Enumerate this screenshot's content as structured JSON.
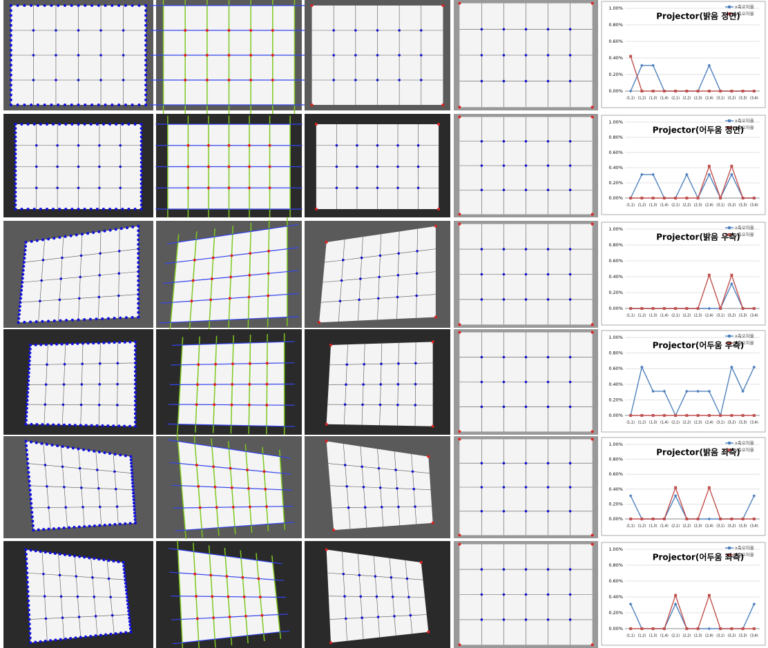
{
  "chart_data": [
    {
      "type": "line",
      "title": "Projector(밝음 정면)",
      "categories": [
        "(1,1)",
        "(1,2)",
        "(1,3)",
        "(1,4)",
        "(2,1)",
        "(2,2)",
        "(2,3)",
        "(2,4)",
        "(3,1)",
        "(3,2)",
        "(3,3)",
        "(3,4)"
      ],
      "series": [
        {
          "name": "x축오차율",
          "color": "#4f81bd",
          "values": [
            0,
            0.31,
            0.31,
            0,
            0,
            0,
            0,
            0.31,
            0,
            0,
            0,
            0
          ]
        },
        {
          "name": "y축오차율",
          "color": "#c0504d",
          "values": [
            0.42,
            0,
            0,
            0,
            0,
            0,
            0,
            0,
            0,
            0,
            0,
            0
          ]
        }
      ],
      "ylim": [
        0,
        1
      ],
      "yticks": [
        {
          "value": 0,
          "label": "0.00%"
        },
        {
          "value": 0.2,
          "label": "0.20%"
        },
        {
          "value": 0.4,
          "label": "0.40%"
        },
        {
          "value": 0.6,
          "label": "0.60%"
        },
        {
          "value": 0.8,
          "label": "0.80%"
        },
        {
          "value": 1,
          "label": "1.00%"
        }
      ],
      "grid": true
    },
    {
      "type": "line",
      "title": "Projector(어두움 정면)",
      "categories": [
        "(1,1)",
        "(1,2)",
        "(1,3)",
        "(1,4)",
        "(2,1)",
        "(2,2)",
        "(2,3)",
        "(2,4)",
        "(3,1)",
        "(3,2)",
        "(3,3)",
        "(3,4)"
      ],
      "series": [
        {
          "name": "x축오차율",
          "color": "#4f81bd",
          "values": [
            0,
            0.31,
            0.31,
            0,
            0,
            0.31,
            0,
            0.31,
            0,
            0.31,
            0,
            0
          ]
        },
        {
          "name": "y축오차율",
          "color": "#c0504d",
          "values": [
            0,
            0,
            0,
            0,
            0,
            0,
            0,
            0.42,
            0,
            0.42,
            0,
            0
          ]
        }
      ],
      "ylim": [
        0,
        1
      ],
      "yticks": [
        {
          "value": 0,
          "label": "0.00%"
        },
        {
          "value": 0.2,
          "label": "0.20%"
        },
        {
          "value": 0.4,
          "label": "0.40%"
        },
        {
          "value": 0.6,
          "label": "0.60%"
        },
        {
          "value": 0.8,
          "label": "0.80%"
        },
        {
          "value": 1,
          "label": "1.00%"
        }
      ],
      "grid": true
    },
    {
      "type": "line",
      "title": "Projector(밝음 우측)",
      "categories": [
        "(1,1)",
        "(1,2)",
        "(1,3)",
        "(1,4)",
        "(2,1)",
        "(2,2)",
        "(2,3)",
        "(2,4)",
        "(3,1)",
        "(3,2)",
        "(3,3)",
        "(3,4)"
      ],
      "series": [
        {
          "name": "x축오차율",
          "color": "#4f81bd",
          "values": [
            0,
            0,
            0,
            0,
            0,
            0,
            0,
            0,
            0,
            0.31,
            0,
            0
          ]
        },
        {
          "name": "y축오차율",
          "color": "#c0504d",
          "values": [
            0,
            0,
            0,
            0,
            0,
            0,
            0,
            0.42,
            0,
            0.42,
            0,
            0
          ]
        }
      ],
      "ylim": [
        0,
        1
      ],
      "yticks": [
        {
          "value": 0,
          "label": "0.00%"
        },
        {
          "value": 0.2,
          "label": "0.20%"
        },
        {
          "value": 0.4,
          "label": "0.40%"
        },
        {
          "value": 0.6,
          "label": "0.60%"
        },
        {
          "value": 0.8,
          "label": "0.80%"
        },
        {
          "value": 1,
          "label": "1.00%"
        }
      ],
      "grid": true
    },
    {
      "type": "line",
      "title": "Projector(어두움 우측)",
      "categories": [
        "(1,1)",
        "(1,2)",
        "(1,3)",
        "(1,4)",
        "(2,1)",
        "(2,2)",
        "(2,3)",
        "(2,4)",
        "(3,1)",
        "(3,2)",
        "(3,3)",
        "(3,4)"
      ],
      "series": [
        {
          "name": "x축오차율",
          "color": "#4f81bd",
          "values": [
            0,
            0.62,
            0.31,
            0.31,
            0,
            0.31,
            0.31,
            0.31,
            0,
            0.62,
            0.31,
            0.62
          ]
        },
        {
          "name": "y축오차율",
          "color": "#c0504d",
          "values": [
            0,
            0,
            0,
            0,
            0,
            0,
            0,
            0,
            0,
            0,
            0,
            0
          ]
        }
      ],
      "ylim": [
        0,
        1
      ],
      "yticks": [
        {
          "value": 0,
          "label": "0.00%"
        },
        {
          "value": 0.2,
          "label": "0.20%"
        },
        {
          "value": 0.4,
          "label": "0.40%"
        },
        {
          "value": 0.6,
          "label": "0.60%"
        },
        {
          "value": 0.8,
          "label": "0.80%"
        },
        {
          "value": 1,
          "label": "1.00%"
        }
      ],
      "grid": true
    },
    {
      "type": "line",
      "title": "Projector(밝음 좌측)",
      "categories": [
        "(1,1)",
        "(1,2)",
        "(1,3)",
        "(1,4)",
        "(2,1)",
        "(2,2)",
        "(2,3)",
        "(2,4)",
        "(3,1)",
        "(3,2)",
        "(3,3)",
        "(3,4)"
      ],
      "series": [
        {
          "name": "x축오차율",
          "color": "#4f81bd",
          "values": [
            0.31,
            0,
            0,
            0,
            0.31,
            0,
            0,
            0,
            0,
            0,
            0,
            0.31
          ]
        },
        {
          "name": "y축오차율",
          "color": "#c0504d",
          "values": [
            0,
            0,
            0,
            0,
            0.42,
            0,
            0,
            0.42,
            0,
            0,
            0,
            0
          ]
        }
      ],
      "ylim": [
        0,
        1
      ],
      "yticks": [
        {
          "value": 0,
          "label": "0.00%"
        },
        {
          "value": 0.2,
          "label": "0.20%"
        },
        {
          "value": 0.4,
          "label": "0.40%"
        },
        {
          "value": 0.6,
          "label": "0.60%"
        },
        {
          "value": 0.8,
          "label": "0.80%"
        },
        {
          "value": 1,
          "label": "1.00%"
        }
      ],
      "grid": true
    },
    {
      "type": "line",
      "title": "Projector(어두움 좌측)",
      "categories": [
        "(1,1)",
        "(1,2)",
        "(1,3)",
        "(1,4)",
        "(2,1)",
        "(2,2)",
        "(2,3)",
        "(2,4)",
        "(3,1)",
        "(3,2)",
        "(3,3)",
        "(3,4)"
      ],
      "series": [
        {
          "name": "x축오차율",
          "color": "#4f81bd",
          "values": [
            0.31,
            0,
            0,
            0,
            0.31,
            0,
            0,
            0,
            0,
            0,
            0,
            0.31
          ]
        },
        {
          "name": "y축오차율",
          "color": "#c0504d",
          "values": [
            0,
            0,
            0,
            0,
            0.42,
            0,
            0,
            0.42,
            0,
            0,
            0,
            0
          ]
        }
      ],
      "ylim": [
        0,
        1
      ],
      "yticks": [
        {
          "value": 0,
          "label": "0.00%"
        },
        {
          "value": 0.2,
          "label": "0.20%"
        },
        {
          "value": 0.4,
          "label": "0.40%"
        },
        {
          "value": 0.6,
          "label": "0.60%"
        },
        {
          "value": 0.8,
          "label": "0.80%"
        },
        {
          "value": 1,
          "label": "1.00%"
        }
      ],
      "grid": true
    }
  ]
}
